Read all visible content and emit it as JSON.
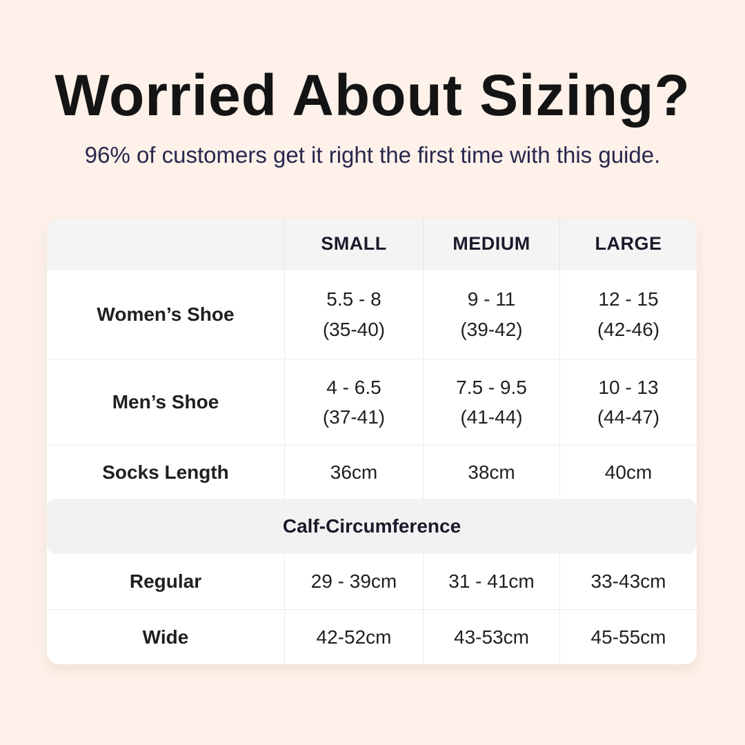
{
  "page": {
    "background_color": "#fdf1e9",
    "accent_navy": "#28274e",
    "text_color": "#1f1f1f"
  },
  "header": {
    "title": "Worried About Sizing?",
    "subtitle": "96% of customers get it right the first time with this guide."
  },
  "table": {
    "columns": {
      "label": "",
      "small": "SMALL",
      "medium": "MEDIUM",
      "large": "LARGE"
    },
    "rows": {
      "womens_shoe": {
        "label": "Women’s Shoe",
        "small_line1": "5.5 - 8",
        "small_line2": "(35-40)",
        "medium_line1": "9 - 11",
        "medium_line2": "(39-42)",
        "large_line1": "12 - 15",
        "large_line2": "(42-46)"
      },
      "mens_shoe": {
        "label": "Men’s Shoe",
        "small_line1": "4 - 6.5",
        "small_line2": "(37-41)",
        "medium_line1": "7.5 - 9.5",
        "medium_line2": "(41-44)",
        "large_line1": "10 - 13",
        "large_line2": "(44-47)"
      },
      "socks_length": {
        "label": "Socks Length",
        "small": "36cm",
        "medium": "38cm",
        "large": "40cm"
      }
    },
    "section_header": "Calf-Circumference",
    "calf_rows": {
      "regular": {
        "label": "Regular",
        "small": "29 - 39cm",
        "medium": "31 - 41cm",
        "large": "33-43cm"
      },
      "wide": {
        "label": "Wide",
        "small": "42-52cm",
        "medium": "43-53cm",
        "large": "45-55cm"
      }
    }
  }
}
